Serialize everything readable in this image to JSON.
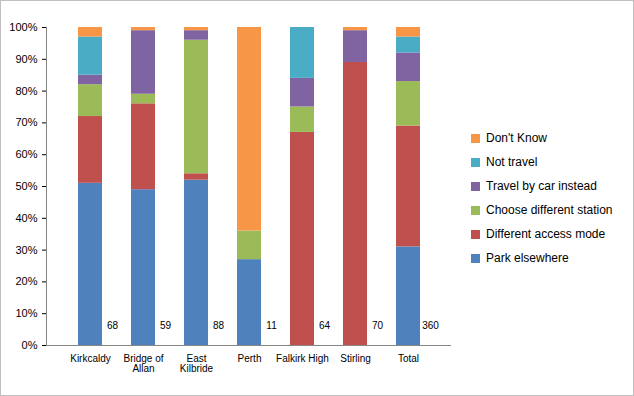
{
  "chart_data": {
    "type": "bar",
    "stacked": true,
    "legend": "right",
    "grid": false,
    "data_labels": false,
    "categories": [
      "Kirkcaldy",
      "Bridge of Allan",
      "East Kilbride",
      "Perth",
      "Falkirk High",
      "Stirling",
      "Total"
    ],
    "sample_sizes": [
      68,
      59,
      88,
      11,
      64,
      70,
      360
    ],
    "ylim": [
      0,
      100
    ],
    "yticks": [
      {
        "value": 0,
        "label": "0%"
      },
      {
        "value": 10,
        "label": "10%"
      },
      {
        "value": 20,
        "label": "20%"
      },
      {
        "value": 30,
        "label": "30%"
      },
      {
        "value": 40,
        "label": "40%"
      },
      {
        "value": 50,
        "label": "50%"
      },
      {
        "value": 60,
        "label": "60%"
      },
      {
        "value": 70,
        "label": "70%"
      },
      {
        "value": 80,
        "label": "80%"
      },
      {
        "value": 90,
        "label": "90%"
      },
      {
        "value": 100,
        "label": "100%"
      }
    ],
    "series": [
      {
        "name": "Park elsewhere",
        "color": "#4F81BD",
        "values": [
          51,
          49,
          52,
          27,
          0,
          0,
          31
        ]
      },
      {
        "name": "Different access mode",
        "color": "#C0504D",
        "values": [
          21,
          27,
          2,
          0,
          67,
          89,
          38
        ]
      },
      {
        "name": "Choose different station",
        "color": "#9BBB59",
        "values": [
          10,
          3,
          42,
          9,
          8,
          0,
          14
        ]
      },
      {
        "name": "Travel by car instead",
        "color": "#8064A2",
        "values": [
          3,
          20,
          3,
          0,
          9,
          10,
          9
        ]
      },
      {
        "name": "Not travel",
        "color": "#4BACC6",
        "values": [
          12,
          0,
          0,
          0,
          16,
          0,
          5
        ]
      },
      {
        "name": "Don't Know",
        "color": "#F79646",
        "values": [
          3,
          1,
          1,
          64,
          0,
          1,
          3
        ]
      }
    ]
  }
}
